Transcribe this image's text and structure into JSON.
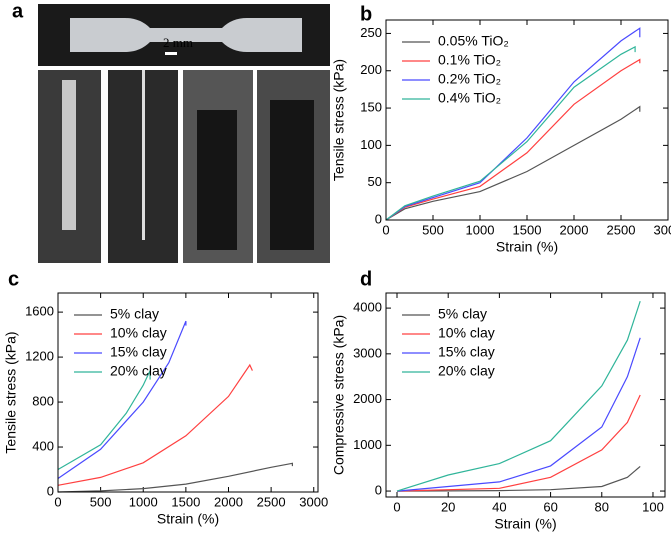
{
  "panel_a": {
    "label": "a",
    "scale_bar": "2 mm"
  },
  "chart_data": [
    {
      "type": "line",
      "panel_label": "b",
      "x_label": "Strain (%)",
      "y_label": "Tensile stress (kPa)",
      "xlim": [
        0,
        3000
      ],
      "xticks": [
        0,
        500,
        1000,
        1500,
        2000,
        2500,
        3000
      ],
      "ylim": [
        0,
        268
      ],
      "yticks": [
        0,
        50,
        100,
        150,
        200,
        250
      ],
      "legend": "upper left",
      "series": [
        {
          "name": "0.05% TiO₂",
          "color": "#555555",
          "x": [
            0,
            200,
            500,
            1000,
            1500,
            2000,
            2500,
            2700,
            2700
          ],
          "values": [
            0,
            15,
            25,
            38,
            65,
            100,
            135,
            152,
            145
          ]
        },
        {
          "name": "0.1% TiO₂",
          "color": "#ff4040",
          "x": [
            0,
            200,
            500,
            1000,
            1500,
            2000,
            2500,
            2700,
            2700
          ],
          "values": [
            0,
            17,
            28,
            45,
            90,
            155,
            200,
            215,
            210
          ]
        },
        {
          "name": "0.2% TiO₂",
          "color": "#4a4aff",
          "x": [
            0,
            200,
            500,
            1000,
            1500,
            2000,
            2500,
            2700,
            2700
          ],
          "values": [
            0,
            18,
            30,
            50,
            110,
            185,
            240,
            257,
            245
          ]
        },
        {
          "name": "0.4% TiO₂",
          "color": "#30b59a",
          "x": [
            0,
            200,
            500,
            1000,
            1500,
            2000,
            2500,
            2650,
            2650
          ],
          "values": [
            0,
            19,
            32,
            52,
            105,
            178,
            222,
            232,
            225
          ]
        }
      ]
    },
    {
      "type": "line",
      "panel_label": "c",
      "x_label": "Strain (%)",
      "y_label": "Tensile stress (kPa)",
      "xlim": [
        0,
        3050
      ],
      "xticks": [
        0,
        500,
        1000,
        1500,
        2000,
        2500,
        3000
      ],
      "ylim": [
        0,
        1770
      ],
      "yticks": [
        0,
        400,
        800,
        1200,
        1600
      ],
      "legend": "upper left",
      "series": [
        {
          "name": "5% clay",
          "color": "#555555",
          "x": [
            0,
            500,
            1000,
            1500,
            2000,
            2500,
            2750,
            2750
          ],
          "values": [
            0,
            10,
            30,
            70,
            140,
            220,
            255,
            230
          ]
        },
        {
          "name": "10% clay",
          "color": "#ff4040",
          "x": [
            0,
            500,
            1000,
            1500,
            2000,
            2250,
            2280
          ],
          "values": [
            60,
            130,
            260,
            500,
            850,
            1130,
            1080
          ]
        },
        {
          "name": "15% clay",
          "color": "#4a4aff",
          "x": [
            0,
            500,
            1000,
            1300,
            1500,
            1500
          ],
          "values": [
            120,
            380,
            800,
            1150,
            1520,
            1480
          ]
        },
        {
          "name": "20% clay",
          "color": "#30b59a",
          "x": [
            0,
            500,
            800,
            1000,
            1080,
            1080
          ],
          "values": [
            200,
            420,
            700,
            950,
            1080,
            1000
          ]
        }
      ]
    },
    {
      "type": "line",
      "panel_label": "d",
      "x_label": "Strain (%)",
      "y_label": "Compressive stress (kPa)",
      "xlim": [
        -4.3,
        104.7
      ],
      "xticks": [
        0,
        20,
        40,
        60,
        80,
        100
      ],
      "ylim": [
        -130,
        4330
      ],
      "yticks": [
        0,
        1000,
        2000,
        3000,
        4000
      ],
      "legend": "upper left",
      "series": [
        {
          "name": "5% clay",
          "color": "#555555",
          "x": [
            0,
            40,
            60,
            80,
            90,
            95
          ],
          "values": [
            0,
            10,
            30,
            100,
            300,
            540
          ]
        },
        {
          "name": "10% clay",
          "color": "#ff4040",
          "x": [
            0,
            40,
            60,
            80,
            90,
            95
          ],
          "values": [
            0,
            60,
            300,
            900,
            1500,
            2100
          ]
        },
        {
          "name": "15% clay",
          "color": "#4a4aff",
          "x": [
            0,
            40,
            60,
            80,
            90,
            95
          ],
          "values": [
            0,
            200,
            550,
            1400,
            2500,
            3350
          ]
        },
        {
          "name": "20% clay",
          "color": "#30b59a",
          "x": [
            0,
            20,
            40,
            60,
            80,
            90,
            95
          ],
          "values": [
            0,
            350,
            600,
            1100,
            2300,
            3300,
            4150
          ]
        }
      ]
    }
  ]
}
